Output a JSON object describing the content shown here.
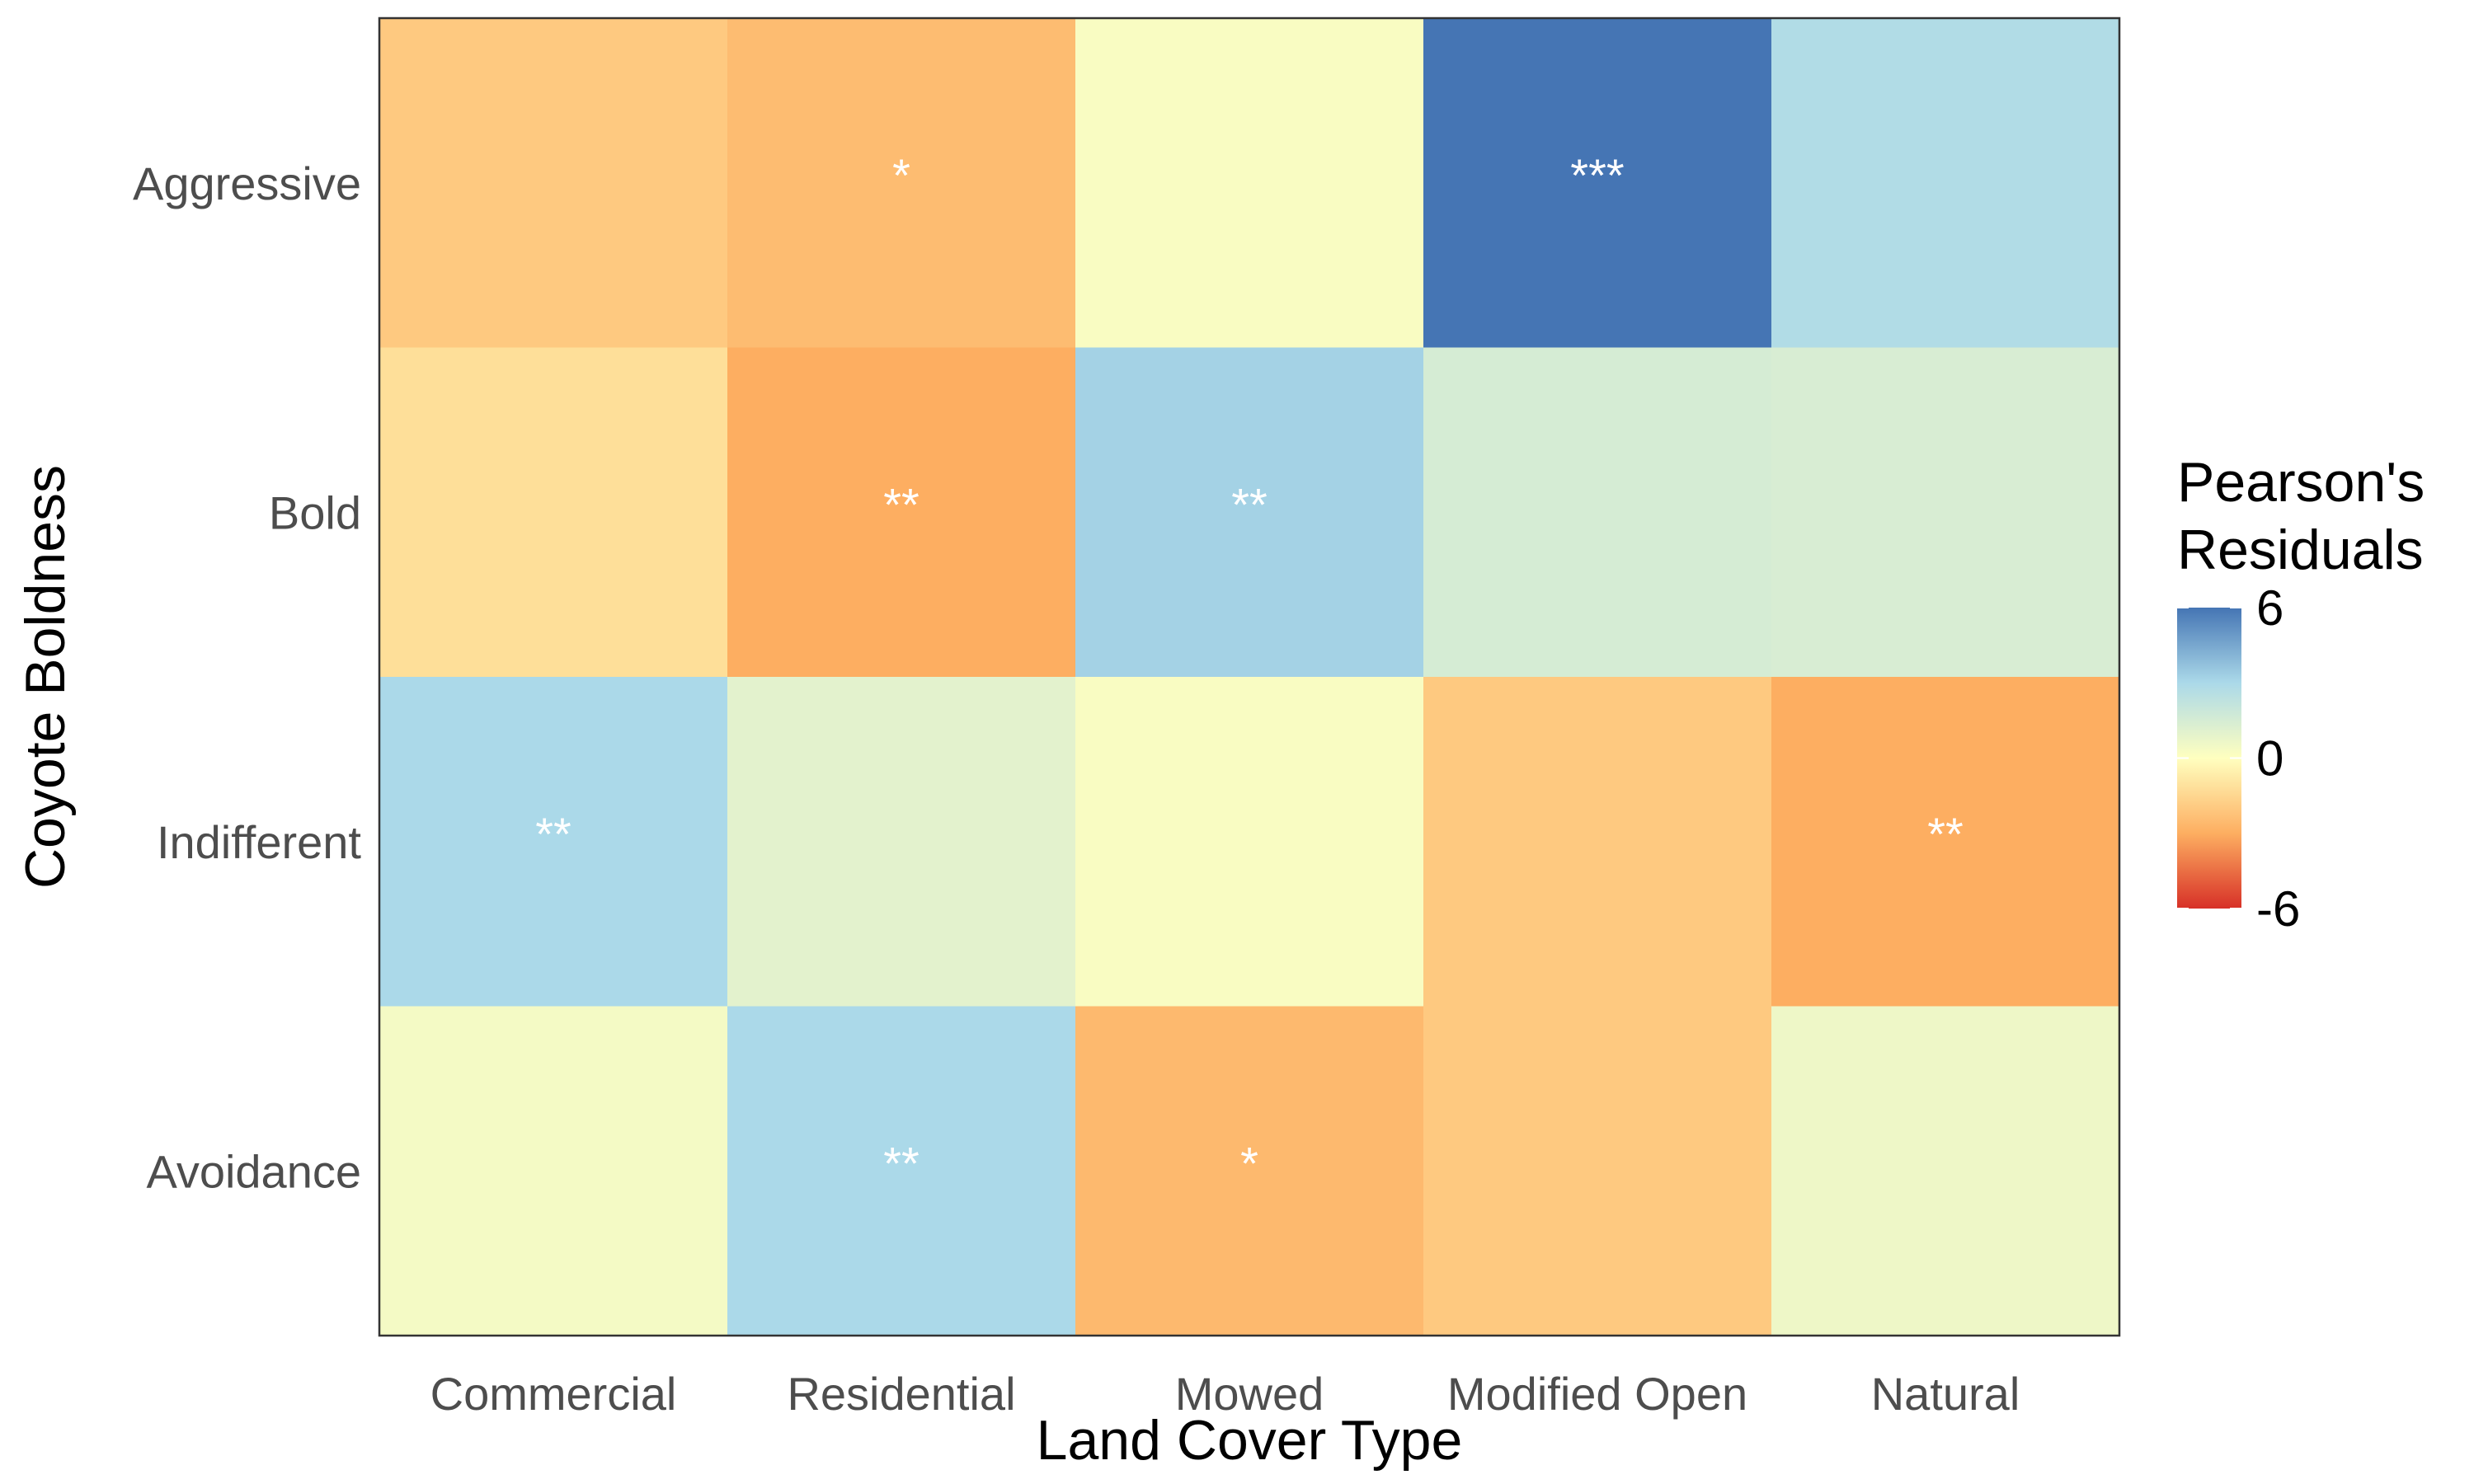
{
  "chart_data": {
    "type": "heatmap",
    "title": "",
    "xlabel": "Land Cover Type",
    "ylabel": "Coyote Boldness",
    "x_categories": [
      "Commercial",
      "Residential",
      "Mowed",
      "Modified Open",
      "Natural"
    ],
    "y_categories": [
      "Aggressive",
      "Bold",
      "Indifferent",
      "Avoidance"
    ],
    "values": [
      [
        -2.0,
        -2.5,
        0.2,
        6.0,
        2.8
      ],
      [
        -1.2,
        -3.0,
        3.2,
        1.5,
        1.4
      ],
      [
        3.0,
        1.0,
        0.2,
        -2.0,
        -3.0
      ],
      [
        0.4,
        3.0,
        -2.6,
        -2.0,
        0.6
      ]
    ],
    "significance": [
      [
        "",
        "*",
        "",
        "***",
        ""
      ],
      [
        "",
        "**",
        "**",
        "",
        ""
      ],
      [
        "**",
        "",
        "",
        "",
        "**"
      ],
      [
        "",
        "**",
        "*",
        "",
        ""
      ]
    ],
    "legend": {
      "title_line1": "Pearson's",
      "title_line2": "Residuals",
      "ticks": [
        6,
        0,
        -6
      ],
      "tick_labels": [
        "6",
        "0",
        "-6"
      ],
      "range": [
        -6,
        6
      ],
      "placement": "right"
    },
    "colors": {
      "low": "#d73027",
      "low_mid": "#fdae61",
      "mid": "#ffffbf",
      "high_mid": "#abd9e9",
      "high": "#4575b4",
      "panel_border": "#333333"
    },
    "grid": false
  }
}
